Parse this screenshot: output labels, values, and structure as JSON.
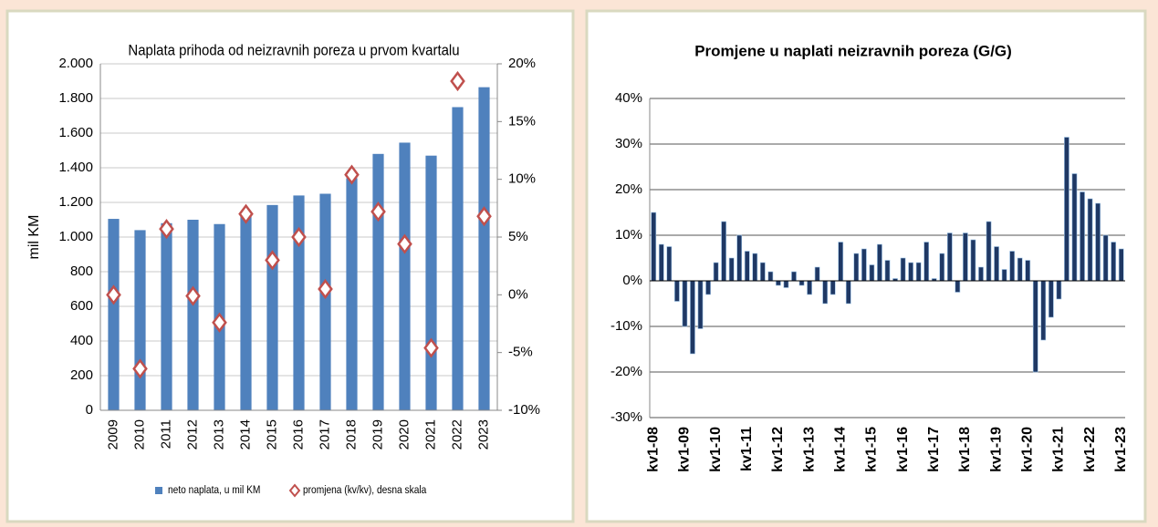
{
  "chart_data": [
    {
      "type": "bar",
      "title": "Naplata prihoda od neizravnih poreza u prvom kvartalu",
      "y_label": "mil KM",
      "categories": [
        "2009",
        "2010",
        "2011",
        "2012",
        "2013",
        "2014",
        "2015",
        "2016",
        "2017",
        "2018",
        "2019",
        "2020",
        "2021",
        "2022",
        "2023"
      ],
      "series": [
        {
          "name": "neto naplata, u mil KM",
          "color": "#4f81bd",
          "values": [
            1105,
            1040,
            1080,
            1100,
            1075,
            1140,
            1185,
            1240,
            1250,
            1340,
            1480,
            1545,
            1470,
            1750,
            1865
          ]
        },
        {
          "name": "promjena (kv/kv), desna skala",
          "color": "#c0504d",
          "axis": "y2",
          "marker": "diamond",
          "values": [
            0.0,
            -6.4,
            5.7,
            -0.1,
            -2.4,
            7.0,
            3.0,
            5.0,
            0.5,
            10.4,
            7.2,
            4.4,
            -4.6,
            18.5,
            6.8
          ]
        }
      ],
      "ylim": [
        0,
        2000
      ],
      "yticks": [
        0,
        200,
        400,
        600,
        800,
        {
          "value": 1000,
          "label": "1.000"
        },
        {
          "value": 1200,
          "label": "1.200"
        },
        {
          "value": 1400,
          "label": "1.400"
        },
        {
          "value": 1600,
          "label": "1.600"
        },
        {
          "value": 1800,
          "label": "1.800"
        },
        {
          "value": 2000,
          "label": "2.000"
        }
      ],
      "y2lim": [
        -10,
        20
      ],
      "y2ticks": [
        {
          "value": -10,
          "label": "-10%"
        },
        {
          "value": -5,
          "label": "-5%"
        },
        {
          "value": 0,
          "label": "0%"
        },
        {
          "value": 5,
          "label": "5%"
        },
        {
          "value": 10,
          "label": "10%"
        },
        {
          "value": 15,
          "label": "15%"
        },
        {
          "value": 20,
          "label": "20%"
        }
      ],
      "grid": true,
      "legend": "bottom"
    },
    {
      "type": "bar",
      "title": "Promjene u naplati neizravnih poreza (G/G)",
      "color": "#1f3864",
      "categories": [
        "kv1-08",
        null,
        null,
        null,
        "kv1-09",
        null,
        null,
        null,
        "kv1-10",
        null,
        null,
        null,
        "kv1-11",
        null,
        null,
        null,
        "kv1-12",
        null,
        null,
        null,
        "kv1-13",
        null,
        null,
        null,
        "kv1-14",
        null,
        null,
        null,
        "kv1-15",
        null,
        null,
        null,
        "kv1-16",
        null,
        null,
        null,
        "kv1-17",
        null,
        null,
        null,
        "kv1-18",
        null,
        null,
        null,
        "kv1-19",
        null,
        null,
        null,
        "kv1-20",
        null,
        null,
        null,
        "kv1-21",
        null,
        null,
        null,
        "kv1-22",
        null,
        null,
        null,
        "kv1-23"
      ],
      "values": [
        15,
        8,
        7.5,
        -4.5,
        -10,
        -16,
        -10.5,
        -3,
        4,
        13,
        5,
        10,
        6.5,
        6,
        4,
        2,
        -1,
        -1.5,
        2,
        -1,
        -3,
        3,
        -5,
        -3,
        8.5,
        -5,
        6,
        7,
        3.5,
        8,
        4.5,
        0.5,
        5,
        4,
        4,
        8.5,
        0.5,
        6,
        10.5,
        -2.5,
        10.5,
        9,
        3,
        13,
        7.5,
        2.5,
        6.5,
        5,
        4.5,
        -20,
        -13,
        -8,
        -4,
        31.5,
        23.5,
        19.5,
        18,
        17,
        10,
        8.5,
        7
      ],
      "ylim": [
        -30,
        40
      ],
      "yticks": [
        {
          "value": -30,
          "label": "-30%"
        },
        {
          "value": -20,
          "label": "-20%"
        },
        {
          "value": -10,
          "label": "-10%"
        },
        {
          "value": 0,
          "label": "0%"
        },
        {
          "value": 10,
          "label": "10%"
        },
        {
          "value": 20,
          "label": "20%"
        },
        {
          "value": 30,
          "label": "30%"
        },
        {
          "value": 40,
          "label": "40%"
        }
      ],
      "grid": true
    }
  ]
}
